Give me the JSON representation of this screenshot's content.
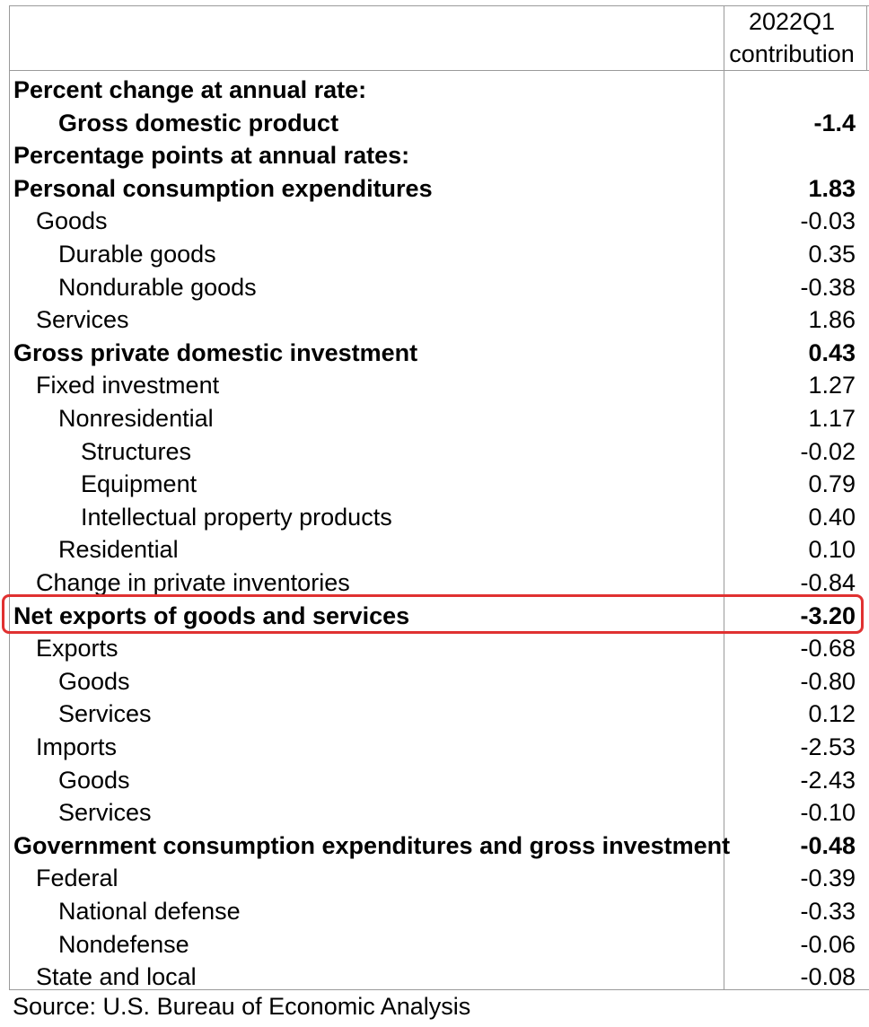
{
  "header": {
    "period": "2022Q1",
    "measure": "contribution"
  },
  "rows": [
    {
      "label": "Percent change at annual rate:",
      "value": "",
      "bold": true,
      "level": 0
    },
    {
      "label": "Gross domestic product",
      "value": "-1.4",
      "bold": true,
      "level": 2
    },
    {
      "label": "Percentage points at annual rates:",
      "value": "",
      "bold": true,
      "level": 0
    },
    {
      "label": "Personal consumption expenditures",
      "value": "1.83",
      "bold": true,
      "level": 0
    },
    {
      "label": "Goods",
      "value": "-0.03",
      "bold": false,
      "level": 1
    },
    {
      "label": "Durable goods",
      "value": "0.35",
      "bold": false,
      "level": 2
    },
    {
      "label": "Nondurable goods",
      "value": "-0.38",
      "bold": false,
      "level": 2
    },
    {
      "label": "Services",
      "value": "1.86",
      "bold": false,
      "level": 1
    },
    {
      "label": "Gross private domestic investment",
      "value": "0.43",
      "bold": true,
      "level": 0
    },
    {
      "label": "Fixed investment",
      "value": "1.27",
      "bold": false,
      "level": 1
    },
    {
      "label": "Nonresidential",
      "value": "1.17",
      "bold": false,
      "level": 2
    },
    {
      "label": "Structures",
      "value": "-0.02",
      "bold": false,
      "level": 3
    },
    {
      "label": "Equipment",
      "value": "0.79",
      "bold": false,
      "level": 3
    },
    {
      "label": "Intellectual property products",
      "value": "0.40",
      "bold": false,
      "level": 3
    },
    {
      "label": "Residential",
      "value": "0.10",
      "bold": false,
      "level": 2
    },
    {
      "label": "Change in private inventories",
      "value": "-0.84",
      "bold": false,
      "level": 1
    },
    {
      "label": "Net exports of goods and services",
      "value": "-3.20",
      "bold": true,
      "level": 0,
      "highlighted": true
    },
    {
      "label": "Exports",
      "value": "-0.68",
      "bold": false,
      "level": 1
    },
    {
      "label": "Goods",
      "value": "-0.80",
      "bold": false,
      "level": 2
    },
    {
      "label": "Services",
      "value": "0.12",
      "bold": false,
      "level": 2
    },
    {
      "label": "Imports",
      "value": "-2.53",
      "bold": false,
      "level": 1
    },
    {
      "label": "Goods",
      "value": "-2.43",
      "bold": false,
      "level": 2
    },
    {
      "label": "Services",
      "value": "-0.10",
      "bold": false,
      "level": 2
    },
    {
      "label": "Government consumption expenditures and gross investment",
      "value": "-0.48",
      "bold": true,
      "level": 0
    },
    {
      "label": "Federal",
      "value": "-0.39",
      "bold": false,
      "level": 1
    },
    {
      "label": "National defense",
      "value": "-0.33",
      "bold": false,
      "level": 2
    },
    {
      "label": "Nondefense",
      "value": "-0.06",
      "bold": false,
      "level": 2
    },
    {
      "label": "State and local",
      "value": "-0.08",
      "bold": false,
      "level": 1
    }
  ],
  "source": "Source: U.S. Bureau of Economic Analysis",
  "colors": {
    "highlight": "#e03131",
    "grid": "#9a9a9a"
  }
}
